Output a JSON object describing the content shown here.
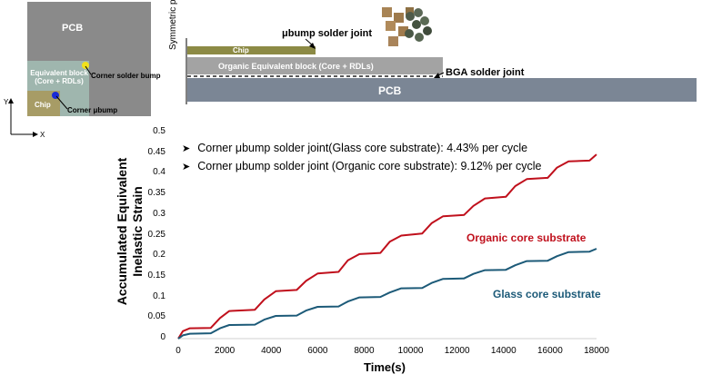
{
  "board": {
    "pcb": "PCB",
    "equivalent_block": "Equivalent block (Core + RDLs)",
    "chip": "Chip",
    "corner_solder_bump": "Corner solder bump",
    "corner_ubump": "Corner μbump",
    "axis_y": "Y",
    "axis_x": "X"
  },
  "cross_section": {
    "symmetric_plane": "Symmetric plane",
    "chip": "Chip",
    "organic_block": "Organic Equivalent block (Core + RDLs)",
    "pcb": "PCB",
    "ubump_label": "μbump solder joint",
    "bga_label": "BGA solder joint"
  },
  "notes": [
    "Corner μbump solder joint(Glass core substrate): 4.43% per cycle",
    "Corner μbump solder joint (Organic core substrate): 9.12% per cycle"
  ],
  "colors": {
    "organic": "#c0101c",
    "glass": "#1c5a78"
  },
  "chart_data": {
    "type": "line",
    "xlabel": "Time(s)",
    "ylabel": "Accumulated Equivalent Inelastic Strain",
    "xlim": [
      0,
      18000
    ],
    "ylim": [
      0,
      0.5
    ],
    "xticks": [
      "0",
      "2000",
      "4000",
      "6000",
      "8000",
      "10000",
      "12000",
      "14000",
      "16000",
      "18000"
    ],
    "yticks": [
      "0",
      "0.05",
      "0.1",
      "0.15",
      "0.2",
      "0.25",
      "0.3",
      "0.35",
      "0.4",
      "0.45",
      "0.5"
    ],
    "series": [
      {
        "name": "Organic core substrate",
        "x": [
          0,
          200,
          500,
          1400,
          1800,
          2200,
          3300,
          3700,
          4200,
          5100,
          5500,
          6000,
          6900,
          7300,
          7800,
          8700,
          9100,
          9600,
          10500,
          10900,
          11400,
          12300,
          12700,
          13200,
          14100,
          14500,
          15000,
          15900,
          16300,
          16800,
          17700,
          18000
        ],
        "y": [
          0,
          0.018,
          0.025,
          0.026,
          0.05,
          0.067,
          0.07,
          0.095,
          0.115,
          0.118,
          0.14,
          0.158,
          0.162,
          0.19,
          0.205,
          0.208,
          0.235,
          0.25,
          0.255,
          0.28,
          0.297,
          0.3,
          0.322,
          0.34,
          0.344,
          0.37,
          0.387,
          0.39,
          0.415,
          0.43,
          0.432,
          0.447
        ]
      },
      {
        "name": "Glass core substrate",
        "x": [
          0,
          200,
          500,
          1400,
          1800,
          2200,
          3300,
          3700,
          4200,
          5100,
          5500,
          6000,
          6900,
          7300,
          7800,
          8700,
          9100,
          9600,
          10500,
          10900,
          11400,
          12300,
          12700,
          13200,
          14100,
          14500,
          15000,
          15900,
          16300,
          16800,
          17700,
          18000
        ],
        "y": [
          0,
          0.008,
          0.012,
          0.013,
          0.025,
          0.033,
          0.034,
          0.046,
          0.055,
          0.056,
          0.068,
          0.077,
          0.078,
          0.09,
          0.1,
          0.101,
          0.112,
          0.122,
          0.123,
          0.135,
          0.145,
          0.146,
          0.157,
          0.166,
          0.167,
          0.178,
          0.188,
          0.189,
          0.2,
          0.21,
          0.211,
          0.218
        ]
      }
    ]
  }
}
